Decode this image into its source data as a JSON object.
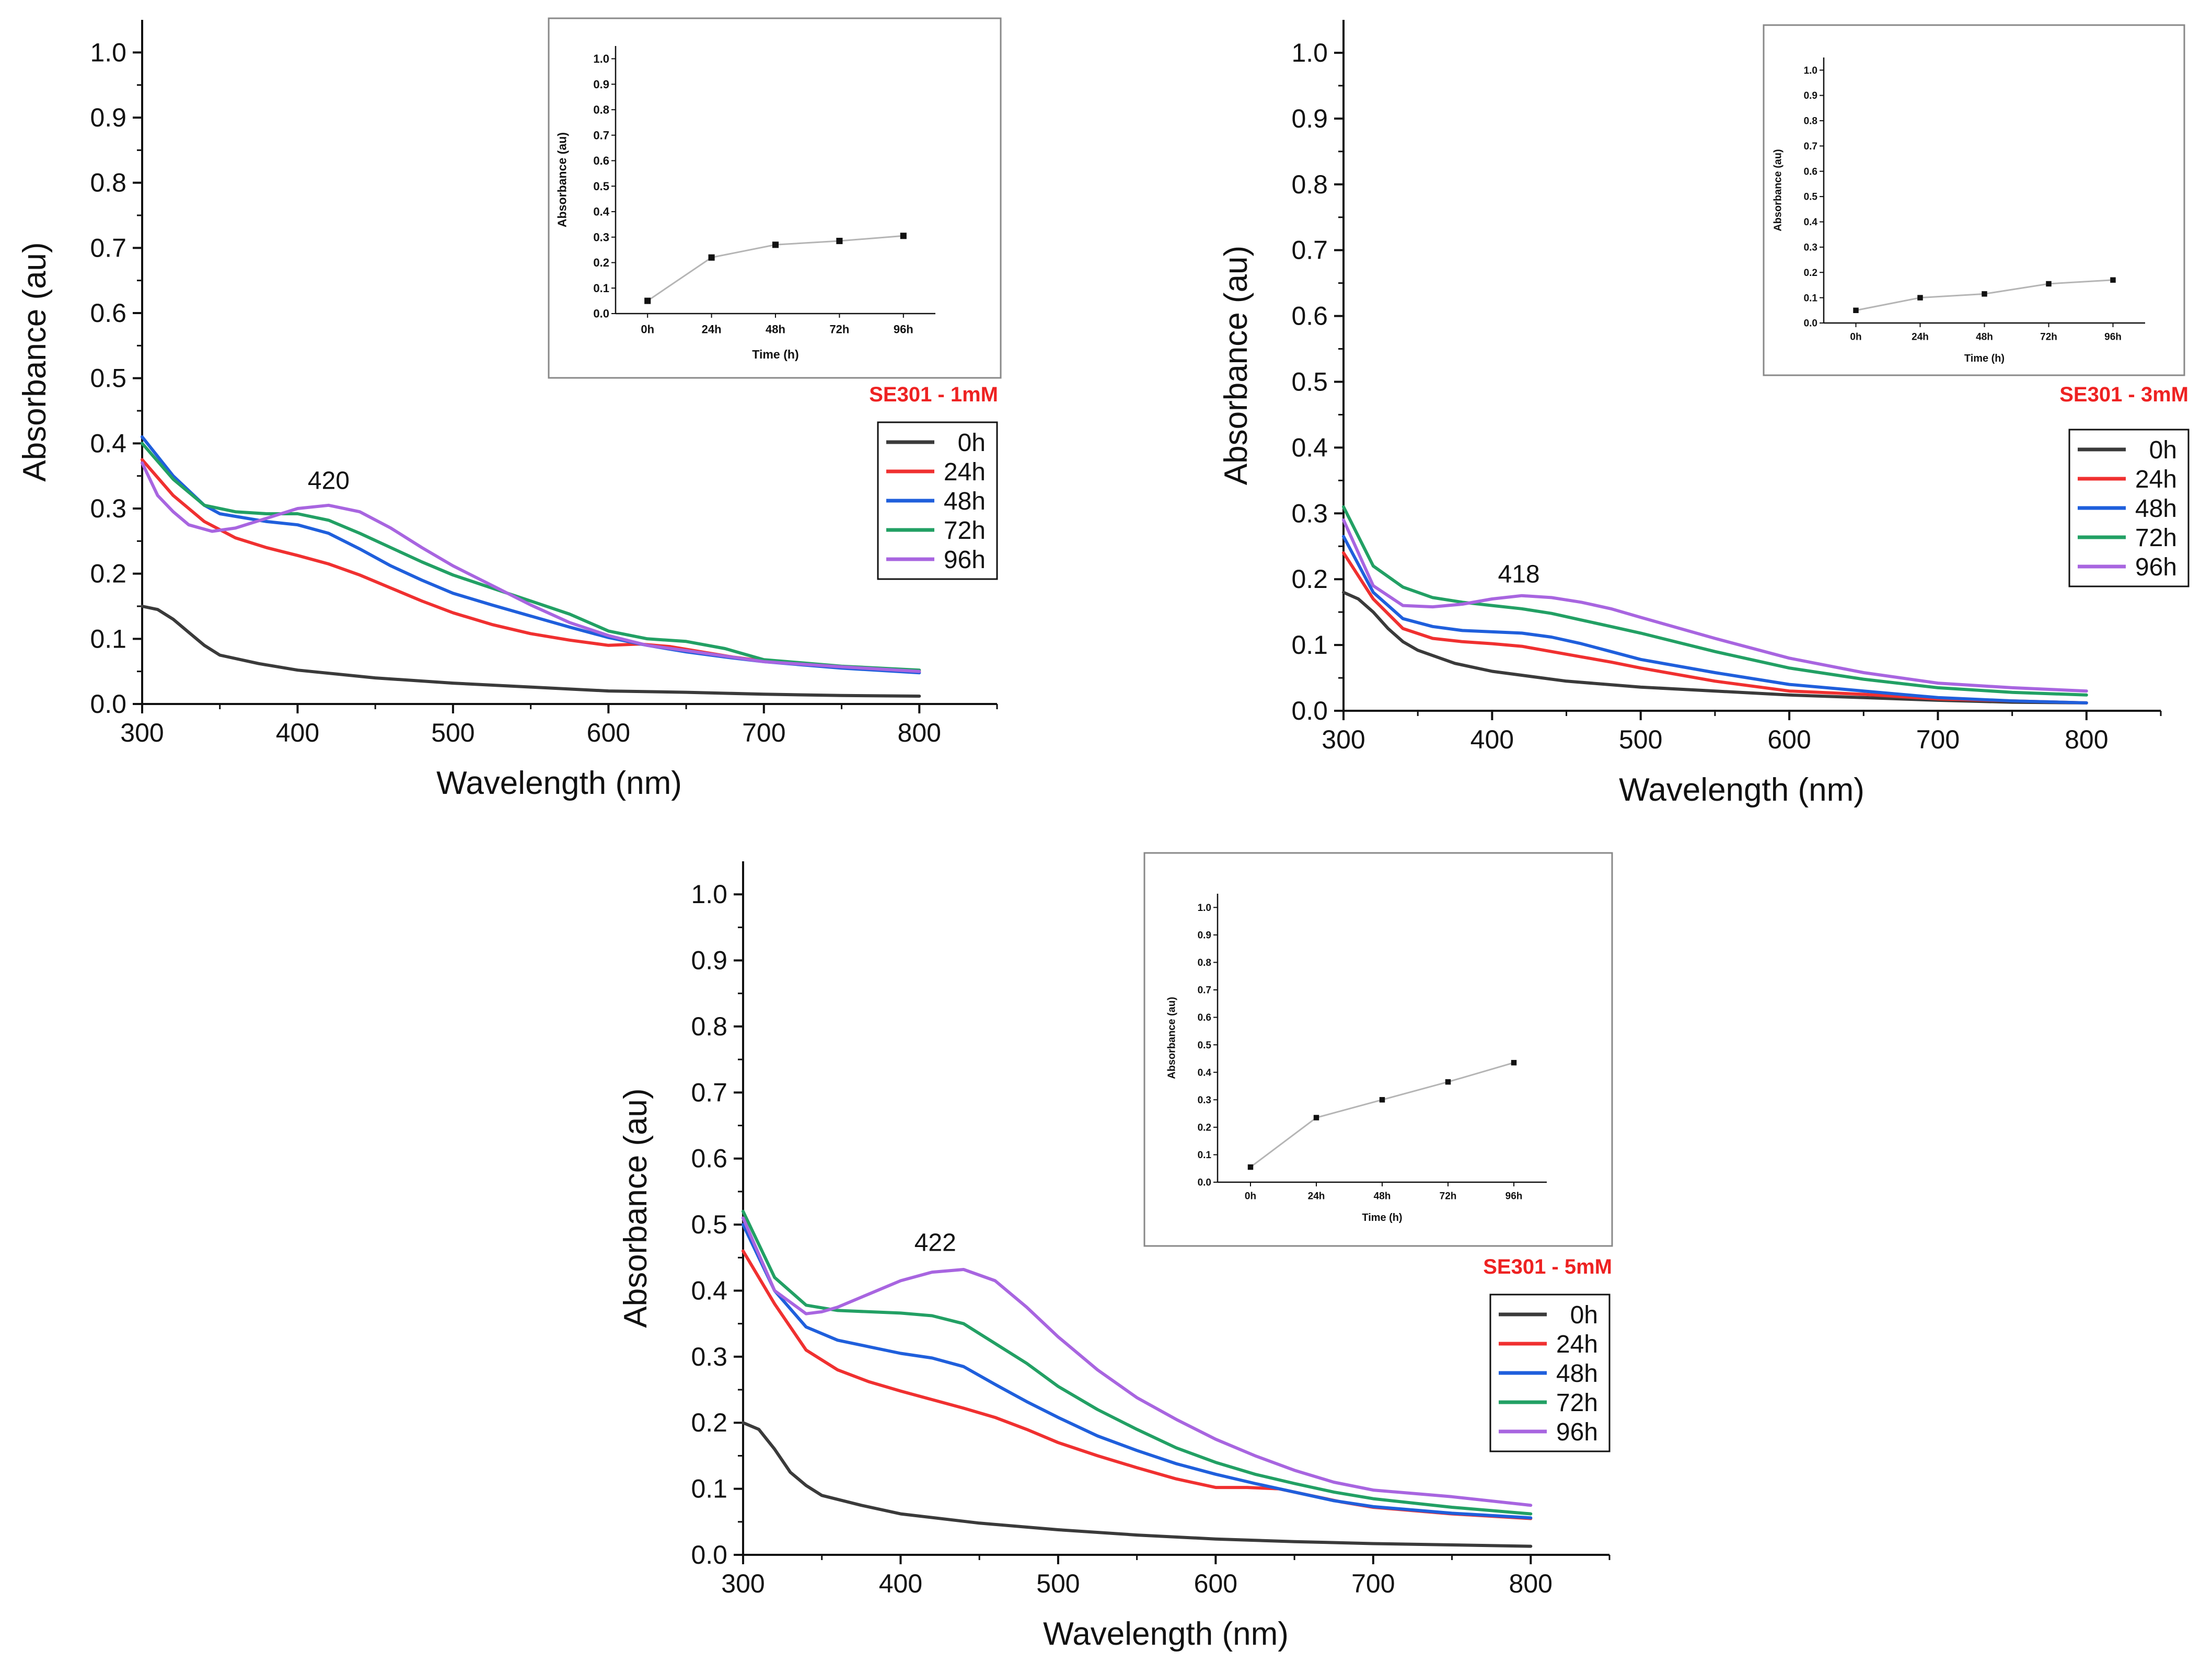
{
  "chart_data": [
    {
      "type": "line",
      "panel_label": "SE301 - 1mM",
      "xlabel": "Wavelength (nm)",
      "ylabel": "Absorbance (au)",
      "xlim": [
        300,
        850
      ],
      "ylim": [
        0,
        1.05
      ],
      "xticks": [
        300,
        400,
        500,
        600,
        700,
        800
      ],
      "yticks": [
        0.0,
        0.1,
        0.2,
        0.3,
        0.4,
        0.5,
        0.6,
        0.7,
        0.8,
        0.9,
        1.0
      ],
      "peak_annotation": {
        "text": "420",
        "x": 420,
        "y": 0.33
      },
      "legend": {
        "position": "right",
        "entries": [
          "0h",
          "24h",
          "48h",
          "72h",
          "96h"
        ]
      },
      "series": [
        {
          "name": "0h",
          "color": "#3a3a3a",
          "x": [
            300,
            310,
            320,
            330,
            340,
            350,
            375,
            400,
            450,
            500,
            550,
            600,
            650,
            700,
            750,
            800
          ],
          "y": [
            0.15,
            0.145,
            0.13,
            0.11,
            0.09,
            0.075,
            0.062,
            0.052,
            0.04,
            0.032,
            0.026,
            0.02,
            0.018,
            0.015,
            0.013,
            0.012
          ]
        },
        {
          "name": "24h",
          "color": "#f03030",
          "x": [
            300,
            320,
            340,
            360,
            380,
            400,
            420,
            440,
            460,
            480,
            500,
            525,
            550,
            575,
            600,
            620,
            640,
            660,
            680,
            700,
            750,
            800
          ],
          "y": [
            0.375,
            0.32,
            0.28,
            0.255,
            0.24,
            0.228,
            0.215,
            0.198,
            0.178,
            0.158,
            0.14,
            0.122,
            0.108,
            0.098,
            0.09,
            0.092,
            0.088,
            0.08,
            0.072,
            0.066,
            0.057,
            0.05
          ]
        },
        {
          "name": "48h",
          "color": "#1f5fdc",
          "x": [
            300,
            320,
            340,
            350,
            360,
            380,
            400,
            420,
            440,
            460,
            480,
            500,
            525,
            550,
            575,
            600,
            625,
            650,
            675,
            700,
            750,
            800
          ],
          "y": [
            0.41,
            0.35,
            0.305,
            0.292,
            0.288,
            0.28,
            0.275,
            0.262,
            0.238,
            0.212,
            0.19,
            0.17,
            0.152,
            0.135,
            0.118,
            0.102,
            0.09,
            0.08,
            0.072,
            0.065,
            0.055,
            0.048
          ]
        },
        {
          "name": "72h",
          "color": "#22a064",
          "x": [
            300,
            320,
            340,
            360,
            380,
            400,
            420,
            440,
            460,
            480,
            500,
            525,
            550,
            575,
            600,
            625,
            650,
            675,
            700,
            750,
            800
          ],
          "y": [
            0.4,
            0.345,
            0.305,
            0.295,
            0.292,
            0.292,
            0.282,
            0.262,
            0.24,
            0.218,
            0.198,
            0.178,
            0.158,
            0.138,
            0.112,
            0.1,
            0.096,
            0.085,
            0.068,
            0.058,
            0.052
          ]
        },
        {
          "name": "96h",
          "color": "#a865e0",
          "x": [
            300,
            310,
            320,
            330,
            345,
            360,
            380,
            400,
            420,
            440,
            460,
            480,
            500,
            525,
            550,
            575,
            600,
            625,
            650,
            700,
            750,
            800
          ],
          "y": [
            0.37,
            0.32,
            0.295,
            0.275,
            0.265,
            0.27,
            0.285,
            0.3,
            0.305,
            0.295,
            0.27,
            0.24,
            0.212,
            0.182,
            0.152,
            0.125,
            0.105,
            0.09,
            0.082,
            0.065,
            0.057,
            0.05
          ]
        }
      ],
      "inset": {
        "type": "line",
        "xlabel": "Time (h)",
        "ylabel": "Absorbance (au)",
        "categories": [
          "0h",
          "24h",
          "48h",
          "72h",
          "96h"
        ],
        "values": [
          0.05,
          0.22,
          0.27,
          0.285,
          0.305
        ],
        "ylim": [
          0,
          1.05
        ],
        "yticks": [
          0.0,
          0.1,
          0.2,
          0.3,
          0.4,
          0.5,
          0.6,
          0.7,
          0.8,
          0.9,
          1.0
        ]
      }
    },
    {
      "type": "line",
      "panel_label": "SE301 - 3mM",
      "xlabel": "Wavelength (nm)",
      "ylabel": "Absorbance (au)",
      "xlim": [
        300,
        850
      ],
      "ylim": [
        0,
        1.05
      ],
      "xticks": [
        300,
        400,
        500,
        600,
        700,
        800
      ],
      "yticks": [
        0.0,
        0.1,
        0.2,
        0.3,
        0.4,
        0.5,
        0.6,
        0.7,
        0.8,
        0.9,
        1.0
      ],
      "peak_annotation": {
        "text": "418",
        "x": 418,
        "y": 0.195
      },
      "legend": {
        "position": "right",
        "entries": [
          "0h",
          "24h",
          "48h",
          "72h",
          "96h"
        ]
      },
      "series": [
        {
          "name": "0h",
          "color": "#3a3a3a",
          "x": [
            300,
            310,
            320,
            330,
            340,
            350,
            375,
            400,
            450,
            500,
            550,
            600,
            650,
            700,
            750,
            800
          ],
          "y": [
            0.18,
            0.17,
            0.15,
            0.125,
            0.105,
            0.092,
            0.072,
            0.06,
            0.045,
            0.036,
            0.03,
            0.024,
            0.02,
            0.016,
            0.013,
            0.012
          ]
        },
        {
          "name": "24h",
          "color": "#f03030",
          "x": [
            300,
            320,
            340,
            360,
            380,
            400,
            420,
            440,
            460,
            480,
            500,
            550,
            600,
            650,
            700,
            750,
            800
          ],
          "y": [
            0.24,
            0.17,
            0.125,
            0.11,
            0.105,
            0.102,
            0.098,
            0.09,
            0.082,
            0.074,
            0.065,
            0.045,
            0.03,
            0.025,
            0.018,
            0.015,
            0.012
          ]
        },
        {
          "name": "48h",
          "color": "#1f5fdc",
          "x": [
            300,
            320,
            340,
            360,
            380,
            400,
            420,
            440,
            460,
            480,
            500,
            550,
            600,
            650,
            700,
            750,
            800
          ],
          "y": [
            0.265,
            0.18,
            0.14,
            0.128,
            0.122,
            0.12,
            0.118,
            0.112,
            0.102,
            0.09,
            0.078,
            0.058,
            0.04,
            0.03,
            0.02,
            0.015,
            0.012
          ]
        },
        {
          "name": "72h",
          "color": "#22a064",
          "x": [
            300,
            320,
            340,
            360,
            380,
            400,
            420,
            440,
            460,
            480,
            500,
            550,
            600,
            650,
            700,
            750,
            800
          ],
          "y": [
            0.31,
            0.22,
            0.188,
            0.172,
            0.165,
            0.16,
            0.155,
            0.148,
            0.138,
            0.128,
            0.118,
            0.09,
            0.065,
            0.048,
            0.035,
            0.028,
            0.024
          ]
        },
        {
          "name": "96h",
          "color": "#a865e0",
          "x": [
            300,
            320,
            340,
            360,
            380,
            400,
            420,
            440,
            460,
            480,
            500,
            550,
            600,
            650,
            700,
            750,
            800
          ],
          "y": [
            0.29,
            0.19,
            0.16,
            0.158,
            0.162,
            0.17,
            0.175,
            0.172,
            0.165,
            0.155,
            0.142,
            0.11,
            0.08,
            0.058,
            0.042,
            0.035,
            0.03
          ]
        }
      ],
      "inset": {
        "type": "line",
        "xlabel": "Time (h)",
        "ylabel": "Absorbance (au)",
        "categories": [
          "0h",
          "24h",
          "48h",
          "72h",
          "96h"
        ],
        "values": [
          0.05,
          0.1,
          0.115,
          0.155,
          0.17
        ],
        "ylim": [
          0,
          1.05
        ],
        "yticks": [
          0.0,
          0.1,
          0.2,
          0.3,
          0.4,
          0.5,
          0.6,
          0.7,
          0.8,
          0.9,
          1.0
        ]
      }
    },
    {
      "type": "line",
      "panel_label": "SE301 - 5mM",
      "xlabel": "Wavelength (nm)",
      "ylabel": "Absorbance (au)",
      "xlim": [
        300,
        850
      ],
      "ylim": [
        0,
        1.05
      ],
      "xticks": [
        300,
        400,
        500,
        600,
        700,
        800
      ],
      "yticks": [
        0.0,
        0.1,
        0.2,
        0.3,
        0.4,
        0.5,
        0.6,
        0.7,
        0.8,
        0.9,
        1.0
      ],
      "peak_annotation": {
        "text": "422",
        "x": 422,
        "y": 0.46
      },
      "legend": {
        "position": "right",
        "entries": [
          "0h",
          "24h",
          "48h",
          "72h",
          "96h"
        ]
      },
      "series": [
        {
          "name": "0h",
          "color": "#3a3a3a",
          "x": [
            300,
            310,
            320,
            330,
            340,
            350,
            375,
            400,
            450,
            500,
            550,
            600,
            650,
            700,
            750,
            800
          ],
          "y": [
            0.2,
            0.19,
            0.16,
            0.125,
            0.105,
            0.09,
            0.075,
            0.062,
            0.048,
            0.038,
            0.03,
            0.024,
            0.02,
            0.017,
            0.015,
            0.013
          ]
        },
        {
          "name": "24h",
          "color": "#f03030",
          "x": [
            300,
            320,
            340,
            360,
            380,
            400,
            420,
            440,
            460,
            480,
            500,
            525,
            550,
            575,
            600,
            620,
            640,
            660,
            680,
            700,
            750,
            800
          ],
          "y": [
            0.46,
            0.38,
            0.31,
            0.28,
            0.262,
            0.248,
            0.235,
            0.222,
            0.208,
            0.19,
            0.17,
            0.15,
            0.132,
            0.115,
            0.102,
            0.102,
            0.1,
            0.09,
            0.08,
            0.072,
            0.062,
            0.055
          ]
        },
        {
          "name": "48h",
          "color": "#1f5fdc",
          "x": [
            300,
            320,
            340,
            360,
            380,
            400,
            420,
            440,
            460,
            480,
            500,
            525,
            550,
            575,
            600,
            625,
            650,
            675,
            700,
            750,
            800
          ],
          "y": [
            0.5,
            0.4,
            0.345,
            0.325,
            0.315,
            0.305,
            0.298,
            0.285,
            0.258,
            0.232,
            0.208,
            0.18,
            0.158,
            0.138,
            0.122,
            0.108,
            0.095,
            0.082,
            0.073,
            0.063,
            0.056
          ]
        },
        {
          "name": "72h",
          "color": "#22a064",
          "x": [
            300,
            320,
            340,
            360,
            380,
            400,
            420,
            440,
            460,
            480,
            500,
            525,
            550,
            575,
            600,
            625,
            650,
            675,
            700,
            750,
            800
          ],
          "y": [
            0.52,
            0.42,
            0.378,
            0.37,
            0.368,
            0.366,
            0.362,
            0.35,
            0.32,
            0.29,
            0.255,
            0.22,
            0.19,
            0.162,
            0.14,
            0.122,
            0.108,
            0.095,
            0.085,
            0.072,
            0.062
          ]
        },
        {
          "name": "96h",
          "color": "#a865e0",
          "x": [
            300,
            320,
            340,
            350,
            360,
            380,
            400,
            420,
            440,
            460,
            480,
            500,
            525,
            550,
            575,
            600,
            625,
            650,
            675,
            700,
            750,
            800
          ],
          "y": [
            0.51,
            0.4,
            0.365,
            0.368,
            0.375,
            0.395,
            0.415,
            0.428,
            0.432,
            0.415,
            0.375,
            0.33,
            0.28,
            0.238,
            0.205,
            0.175,
            0.15,
            0.128,
            0.11,
            0.098,
            0.088,
            0.075
          ]
        }
      ],
      "inset": {
        "type": "line",
        "xlabel": "Time (h)",
        "ylabel": "Absorbance (au)",
        "categories": [
          "0h",
          "24h",
          "48h",
          "72h",
          "96h"
        ],
        "values": [
          0.055,
          0.235,
          0.3,
          0.365,
          0.435
        ],
        "ylim": [
          0,
          1.05
        ],
        "yticks": [
          0.0,
          0.1,
          0.2,
          0.3,
          0.4,
          0.5,
          0.6,
          0.7,
          0.8,
          0.9,
          1.0
        ]
      }
    }
  ]
}
